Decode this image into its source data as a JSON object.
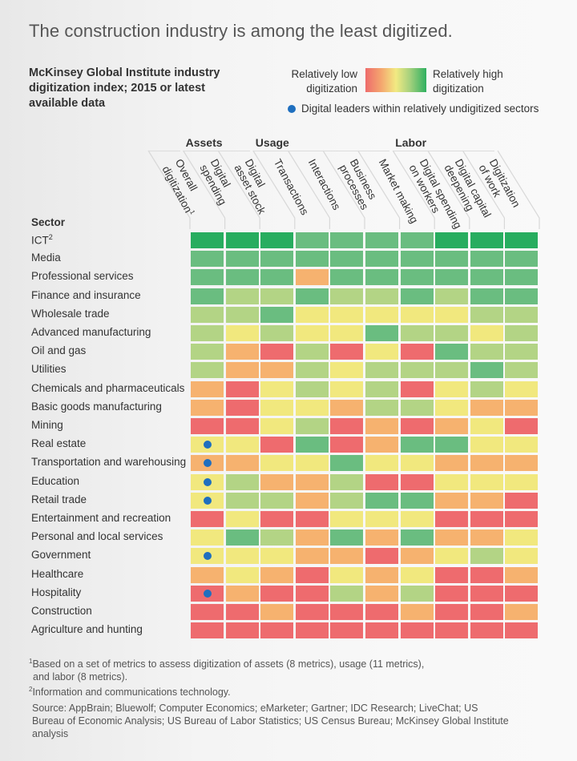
{
  "title": "The construction industry is among the least digitized.",
  "subtitle": "McKinsey Global Institute industry digitization index; 2015 or latest available data",
  "legend": {
    "low_line1": "Relatively low",
    "low_line2": "digitization",
    "high_line1": "Relatively high",
    "high_line2": "digitization",
    "dot_label": "Digital leaders within relatively undigitized sectors",
    "dot_color": "#1f6fbf"
  },
  "sector_header": "Sector",
  "footnotes": {
    "fn1_marker": "1",
    "fn1": "Based on a set of metrics to assess digitization of assets (8 metrics), usage (11 metrics),",
    "fn1_cont": "and labor (8 metrics).",
    "fn2_marker": "2",
    "fn2": "Information and communications technology."
  },
  "source": "Source: AppBrain; Bluewolf; Computer Economics; eMarketer; Gartner; IDC Research; LiveChat; US Bureau of Economic Analysis; US Bureau of Labor Statistics; US Census Bureau; McKinsey Global Institute analysis",
  "chart_data": {
    "type": "heatmap",
    "title": "The construction industry is among the least digitized.",
    "subtitle": "McKinsey Global Institute industry digitization index; 2015 or latest available data",
    "scale": {
      "levels": [
        0,
        1,
        2,
        3,
        4,
        5
      ],
      "level_meaning": "0 = relatively low digitization, 5 = relatively high digitization",
      "colors": [
        "#ee6b6e",
        "#f6b26f",
        "#f1e87e",
        "#b3d485",
        "#6abd80",
        "#27ad5f"
      ]
    },
    "column_groups": [
      {
        "name": "Assets",
        "columns": [
          1,
          2
        ]
      },
      {
        "name": "Usage",
        "columns": [
          3,
          4,
          5,
          6
        ]
      },
      {
        "name": "Labor",
        "columns": [
          7,
          8,
          9
        ]
      }
    ],
    "columns": [
      {
        "line1": "Overall",
        "line2": "digitization",
        "sup": "1"
      },
      {
        "line1": "Digital",
        "line2": "spending",
        "sup": ""
      },
      {
        "line1": "Digital",
        "line2": "asset stock",
        "sup": ""
      },
      {
        "line1": "Transactions",
        "line2": "",
        "sup": ""
      },
      {
        "line1": "Interactions",
        "line2": "",
        "sup": ""
      },
      {
        "line1": "Business",
        "line2": "processes",
        "sup": ""
      },
      {
        "line1": "Market making",
        "line2": "",
        "sup": ""
      },
      {
        "line1": "Digital spending",
        "line2": "on workers",
        "sup": ""
      },
      {
        "line1": "Digital capital",
        "line2": "deepening",
        "sup": ""
      },
      {
        "line1": "Digitization",
        "line2": "of work",
        "sup": ""
      }
    ],
    "rows": [
      {
        "sector": "ICT",
        "sup": "2",
        "leader": false,
        "values": [
          5,
          5,
          5,
          4,
          4,
          4,
          4,
          5,
          5,
          5
        ]
      },
      {
        "sector": "Media",
        "sup": "",
        "leader": false,
        "values": [
          4,
          4,
          4,
          4,
          4,
          4,
          4,
          4,
          4,
          4
        ]
      },
      {
        "sector": "Professional services",
        "sup": "",
        "leader": false,
        "values": [
          4,
          4,
          4,
          1,
          4,
          4,
          4,
          4,
          4,
          4
        ]
      },
      {
        "sector": "Finance and insurance",
        "sup": "",
        "leader": false,
        "values": [
          4,
          3,
          3,
          4,
          3,
          3,
          4,
          3,
          4,
          4
        ]
      },
      {
        "sector": "Wholesale trade",
        "sup": "",
        "leader": false,
        "values": [
          3,
          3,
          4,
          2,
          2,
          2,
          2,
          2,
          3,
          3
        ]
      },
      {
        "sector": "Advanced manufacturing",
        "sup": "",
        "leader": false,
        "values": [
          3,
          2,
          3,
          2,
          2,
          4,
          3,
          3,
          2,
          3
        ]
      },
      {
        "sector": "Oil and gas",
        "sup": "",
        "leader": false,
        "values": [
          3,
          1,
          0,
          3,
          0,
          2,
          0,
          4,
          3,
          3
        ]
      },
      {
        "sector": "Utilities",
        "sup": "",
        "leader": false,
        "values": [
          3,
          1,
          1,
          3,
          2,
          3,
          3,
          3,
          4,
          3
        ]
      },
      {
        "sector": "Chemicals and pharmaceuticals",
        "sup": "",
        "leader": false,
        "values": [
          1,
          0,
          2,
          3,
          2,
          3,
          0,
          2,
          3,
          2
        ]
      },
      {
        "sector": "Basic goods manufacturing",
        "sup": "",
        "leader": false,
        "values": [
          1,
          0,
          2,
          2,
          1,
          3,
          3,
          2,
          1,
          1
        ]
      },
      {
        "sector": "Mining",
        "sup": "",
        "leader": false,
        "values": [
          0,
          0,
          2,
          3,
          0,
          1,
          0,
          1,
          2,
          0
        ]
      },
      {
        "sector": "Real estate",
        "sup": "",
        "leader": true,
        "values": [
          2,
          2,
          0,
          4,
          0,
          1,
          4,
          4,
          2,
          2
        ]
      },
      {
        "sector": "Transportation and warehousing",
        "sup": "",
        "leader": true,
        "values": [
          1,
          1,
          2,
          2,
          4,
          2,
          2,
          1,
          1,
          1
        ]
      },
      {
        "sector": "Education",
        "sup": "",
        "leader": true,
        "values": [
          2,
          3,
          1,
          1,
          3,
          0,
          0,
          2,
          2,
          2
        ]
      },
      {
        "sector": "Retail trade",
        "sup": "",
        "leader": true,
        "values": [
          2,
          3,
          3,
          1,
          3,
          4,
          4,
          1,
          1,
          0
        ]
      },
      {
        "sector": "Entertainment and recreation",
        "sup": "",
        "leader": false,
        "values": [
          0,
          2,
          0,
          0,
          2,
          2,
          2,
          0,
          0,
          0
        ]
      },
      {
        "sector": "Personal and local services",
        "sup": "",
        "leader": false,
        "values": [
          2,
          4,
          3,
          1,
          4,
          1,
          4,
          1,
          1,
          2
        ]
      },
      {
        "sector": "Government",
        "sup": "",
        "leader": true,
        "values": [
          2,
          2,
          2,
          1,
          1,
          0,
          1,
          2,
          3,
          2
        ]
      },
      {
        "sector": "Healthcare",
        "sup": "",
        "leader": false,
        "values": [
          1,
          2,
          1,
          0,
          2,
          1,
          2,
          0,
          0,
          1
        ]
      },
      {
        "sector": "Hospitality",
        "sup": "",
        "leader": true,
        "values": [
          0,
          1,
          0,
          0,
          3,
          1,
          3,
          0,
          0,
          0
        ]
      },
      {
        "sector": "Construction",
        "sup": "",
        "leader": false,
        "values": [
          0,
          0,
          1,
          0,
          0,
          0,
          1,
          0,
          0,
          1
        ]
      },
      {
        "sector": "Agriculture and hunting",
        "sup": "",
        "leader": false,
        "values": [
          0,
          0,
          0,
          0,
          0,
          0,
          0,
          0,
          0,
          0
        ]
      }
    ]
  }
}
